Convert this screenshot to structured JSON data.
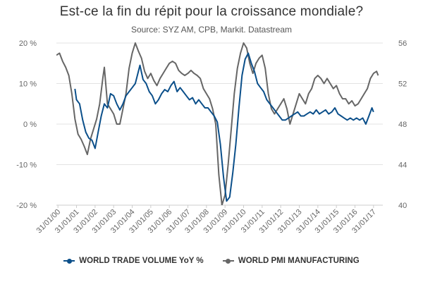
{
  "colors": {
    "trade": "#0b4f8a",
    "pmi": "#666666",
    "grid": "#e3e3e3",
    "axis_text": "#666666"
  },
  "chart_data": {
    "type": "line",
    "title": "Est-ce la fin du répit pour la croissance mondiale?",
    "subtitle": "Source: SYZ AM, CPB, Markit. Datastream",
    "x_tick_labels": [
      "31/01/00",
      "31/01/01",
      "31/01/02",
      "31/01/03",
      "31/01/04",
      "31/01/05",
      "31/01/06",
      "31/01/07",
      "31/01/08",
      "31/01/09",
      "31/01/10",
      "31/01/11",
      "31/01/12",
      "31/01/13",
      "31/01/14",
      "31/01/15",
      "31/01/16",
      "31/01/17"
    ],
    "y_left": {
      "ticks": [
        "20 %",
        "10 %",
        "0 %",
        "-10 %",
        "-20 %"
      ],
      "values": [
        20,
        10,
        0,
        -10,
        -20
      ],
      "range": [
        -20,
        20
      ]
    },
    "y_right": {
      "ticks": [
        "56",
        "52",
        "48",
        "44",
        "40"
      ],
      "values": [
        56,
        52,
        48,
        44,
        40
      ],
      "range": [
        40,
        56
      ]
    },
    "grid": true,
    "legend_position": "bottom",
    "series": [
      {
        "name": "WORLD TRADE VOLUME YoY %",
        "axis": "left",
        "points": [
          [
            "2001-01",
            8.7
          ],
          [
            "2001-02",
            6.0
          ],
          [
            "2001-04",
            5.0
          ],
          [
            "2001-06",
            1.0
          ],
          [
            "2001-08",
            -2.0
          ],
          [
            "2001-10",
            -3.5
          ],
          [
            "2001-12",
            -4.0
          ],
          [
            "2002-02",
            -6.0
          ],
          [
            "2002-04",
            -2.0
          ],
          [
            "2002-06",
            2.0
          ],
          [
            "2002-08",
            5.0
          ],
          [
            "2002-10",
            4.0
          ],
          [
            "2002-12",
            7.5
          ],
          [
            "2003-02",
            7.0
          ],
          [
            "2003-04",
            5.0
          ],
          [
            "2003-06",
            3.5
          ],
          [
            "2003-08",
            5.0
          ],
          [
            "2003-10",
            7.0
          ],
          [
            "2003-12",
            8.0
          ],
          [
            "2004-02",
            9.0
          ],
          [
            "2004-04",
            10.0
          ],
          [
            "2004-06",
            13.0
          ],
          [
            "2004-07",
            14.5
          ],
          [
            "2004-09",
            11.0
          ],
          [
            "2004-11",
            10.0
          ],
          [
            "2005-01",
            8.0
          ],
          [
            "2005-03",
            7.0
          ],
          [
            "2005-05",
            5.0
          ],
          [
            "2005-07",
            6.0
          ],
          [
            "2005-09",
            7.5
          ],
          [
            "2005-11",
            8.5
          ],
          [
            "2006-01",
            8.0
          ],
          [
            "2006-03",
            9.5
          ],
          [
            "2006-05",
            10.5
          ],
          [
            "2006-07",
            8.0
          ],
          [
            "2006-09",
            9.0
          ],
          [
            "2006-11",
            8.0
          ],
          [
            "2007-01",
            7.0
          ],
          [
            "2007-03",
            6.0
          ],
          [
            "2007-05",
            6.5
          ],
          [
            "2007-07",
            5.0
          ],
          [
            "2007-09",
            6.0
          ],
          [
            "2007-11",
            5.0
          ],
          [
            "2008-01",
            4.0
          ],
          [
            "2008-03",
            4.0
          ],
          [
            "2008-05",
            3.0
          ],
          [
            "2008-07",
            2.0
          ],
          [
            "2008-09",
            0.5
          ],
          [
            "2008-11",
            -5.0
          ],
          [
            "2009-01",
            -13.0
          ],
          [
            "2009-03",
            -19.0
          ],
          [
            "2009-05",
            -18.0
          ],
          [
            "2009-07",
            -12.0
          ],
          [
            "2009-09",
            -5.0
          ],
          [
            "2009-11",
            4.0
          ],
          [
            "2010-01",
            12.0
          ],
          [
            "2010-03",
            16.0
          ],
          [
            "2010-05",
            17.5
          ],
          [
            "2010-07",
            15.0
          ],
          [
            "2010-09",
            13.0
          ],
          [
            "2010-11",
            10.0
          ],
          [
            "2011-01",
            9.0
          ],
          [
            "2011-03",
            8.0
          ],
          [
            "2011-05",
            6.0
          ],
          [
            "2011-07",
            5.0
          ],
          [
            "2011-09",
            4.0
          ],
          [
            "2011-11",
            3.0
          ],
          [
            "2012-01",
            2.0
          ],
          [
            "2012-03",
            1.0
          ],
          [
            "2012-05",
            1.0
          ],
          [
            "2012-07",
            1.5
          ],
          [
            "2012-09",
            2.0
          ],
          [
            "2012-11",
            2.5
          ],
          [
            "2013-01",
            3.0
          ],
          [
            "2013-03",
            2.0
          ],
          [
            "2013-05",
            2.0
          ],
          [
            "2013-07",
            2.5
          ],
          [
            "2013-09",
            3.0
          ],
          [
            "2013-11",
            2.5
          ],
          [
            "2014-01",
            3.5
          ],
          [
            "2014-03",
            2.5
          ],
          [
            "2014-05",
            3.0
          ],
          [
            "2014-07",
            3.5
          ],
          [
            "2014-09",
            2.5
          ],
          [
            "2014-11",
            3.0
          ],
          [
            "2015-01",
            4.0
          ],
          [
            "2015-03",
            2.5
          ],
          [
            "2015-05",
            2.0
          ],
          [
            "2015-07",
            1.5
          ],
          [
            "2015-09",
            1.0
          ],
          [
            "2015-11",
            1.5
          ],
          [
            "2016-01",
            1.0
          ],
          [
            "2016-03",
            1.5
          ],
          [
            "2016-05",
            1.0
          ],
          [
            "2016-07",
            1.5
          ],
          [
            "2016-09",
            0.0
          ],
          [
            "2016-11",
            2.0
          ],
          [
            "2017-01",
            4.0
          ],
          [
            "2017-02",
            3.0
          ]
        ]
      },
      {
        "name": "WORLD PMI MANUFACTURING",
        "axis": "right",
        "points": [
          [
            "2000-01",
            54.8
          ],
          [
            "2000-03",
            55.0
          ],
          [
            "2000-05",
            54.2
          ],
          [
            "2000-07",
            53.6
          ],
          [
            "2000-09",
            52.8
          ],
          [
            "2000-11",
            51.0
          ],
          [
            "2001-01",
            48.5
          ],
          [
            "2001-03",
            47.0
          ],
          [
            "2001-05",
            46.5
          ],
          [
            "2001-07",
            45.8
          ],
          [
            "2001-09",
            45.0
          ],
          [
            "2001-11",
            46.5
          ],
          [
            "2002-01",
            47.5
          ],
          [
            "2002-03",
            48.5
          ],
          [
            "2002-05",
            50.0
          ],
          [
            "2002-07",
            52.5
          ],
          [
            "2002-08",
            53.6
          ],
          [
            "2002-10",
            50.0
          ],
          [
            "2002-12",
            49.5
          ],
          [
            "2003-02",
            49.0
          ],
          [
            "2003-04",
            48.0
          ],
          [
            "2003-06",
            48.0
          ],
          [
            "2003-08",
            49.5
          ],
          [
            "2003-10",
            51.0
          ],
          [
            "2003-12",
            53.5
          ],
          [
            "2004-02",
            55.0
          ],
          [
            "2004-04",
            56.0
          ],
          [
            "2004-06",
            55.2
          ],
          [
            "2004-08",
            54.5
          ],
          [
            "2004-10",
            53.2
          ],
          [
            "2004-12",
            52.5
          ],
          [
            "2005-02",
            53.0
          ],
          [
            "2005-04",
            52.3
          ],
          [
            "2005-06",
            51.8
          ],
          [
            "2005-08",
            52.5
          ],
          [
            "2005-10",
            53.0
          ],
          [
            "2005-12",
            53.5
          ],
          [
            "2006-02",
            54.0
          ],
          [
            "2006-04",
            54.2
          ],
          [
            "2006-06",
            54.0
          ],
          [
            "2006-08",
            53.3
          ],
          [
            "2006-10",
            53.0
          ],
          [
            "2006-12",
            52.8
          ],
          [
            "2007-02",
            53.0
          ],
          [
            "2007-04",
            53.3
          ],
          [
            "2007-06",
            53.0
          ],
          [
            "2007-08",
            52.8
          ],
          [
            "2007-10",
            52.5
          ],
          [
            "2007-12",
            51.5
          ],
          [
            "2008-02",
            51.0
          ],
          [
            "2008-04",
            50.5
          ],
          [
            "2008-06",
            49.5
          ],
          [
            "2008-08",
            48.0
          ],
          [
            "2008-10",
            43.0
          ],
          [
            "2008-12",
            40.0
          ],
          [
            "2009-02",
            41.0
          ],
          [
            "2009-04",
            44.0
          ],
          [
            "2009-06",
            47.5
          ],
          [
            "2009-08",
            51.0
          ],
          [
            "2009-10",
            53.5
          ],
          [
            "2009-12",
            55.0
          ],
          [
            "2010-02",
            56.0
          ],
          [
            "2010-04",
            55.5
          ],
          [
            "2010-06",
            54.0
          ],
          [
            "2010-08",
            53.0
          ],
          [
            "2010-10",
            54.0
          ],
          [
            "2010-12",
            54.5
          ],
          [
            "2011-02",
            54.8
          ],
          [
            "2011-04",
            53.5
          ],
          [
            "2011-06",
            51.0
          ],
          [
            "2011-08",
            49.5
          ],
          [
            "2011-10",
            49.0
          ],
          [
            "2011-12",
            49.5
          ],
          [
            "2012-02",
            50.0
          ],
          [
            "2012-04",
            50.5
          ],
          [
            "2012-06",
            49.5
          ],
          [
            "2012-08",
            48.0
          ],
          [
            "2012-10",
            49.0
          ],
          [
            "2012-12",
            50.0
          ],
          [
            "2013-02",
            51.0
          ],
          [
            "2013-04",
            50.5
          ],
          [
            "2013-06",
            50.0
          ],
          [
            "2013-08",
            51.0
          ],
          [
            "2013-10",
            51.5
          ],
          [
            "2013-12",
            52.5
          ],
          [
            "2014-02",
            52.8
          ],
          [
            "2014-04",
            52.5
          ],
          [
            "2014-06",
            52.0
          ],
          [
            "2014-08",
            52.5
          ],
          [
            "2014-10",
            52.0
          ],
          [
            "2014-12",
            51.5
          ],
          [
            "2015-02",
            51.8
          ],
          [
            "2015-04",
            51.0
          ],
          [
            "2015-06",
            50.5
          ],
          [
            "2015-08",
            50.5
          ],
          [
            "2015-10",
            50.0
          ],
          [
            "2015-12",
            50.3
          ],
          [
            "2016-02",
            49.8
          ],
          [
            "2016-04",
            50.0
          ],
          [
            "2016-06",
            50.5
          ],
          [
            "2016-08",
            51.0
          ],
          [
            "2016-10",
            51.5
          ],
          [
            "2016-12",
            52.5
          ],
          [
            "2017-02",
            53.0
          ],
          [
            "2017-04",
            53.2
          ],
          [
            "2017-05",
            52.8
          ]
        ]
      }
    ]
  }
}
